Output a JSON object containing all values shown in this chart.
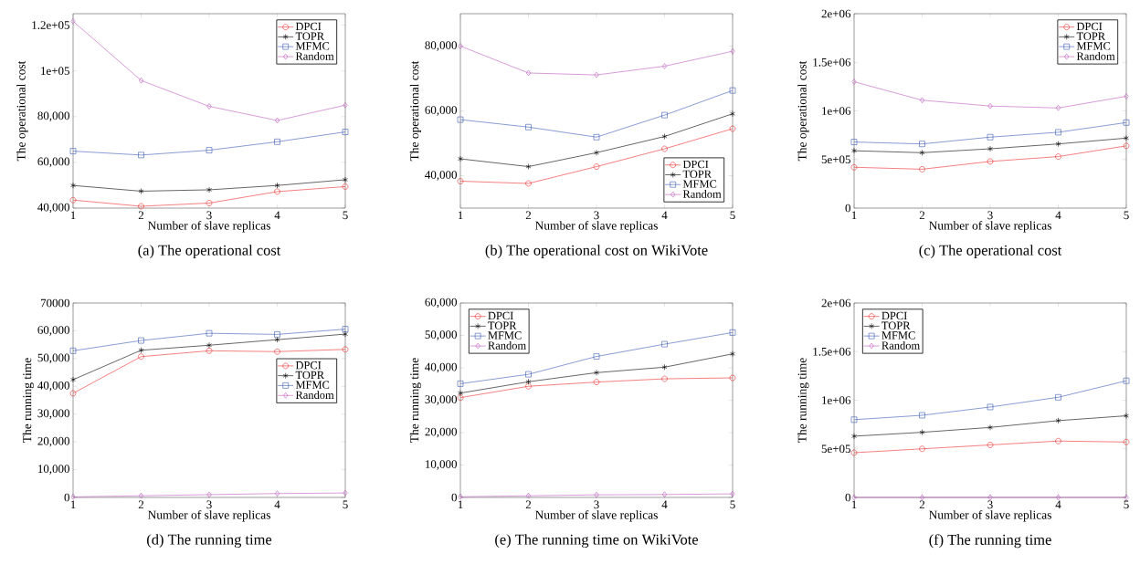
{
  "chart_data": [
    {
      "type": "line",
      "title": "(a) The operational cost",
      "xlabel": "Number of slave replicas",
      "ylabel": "The operational cost",
      "x": [
        1,
        2,
        3,
        4,
        5
      ],
      "xlim": [
        1,
        5
      ],
      "xticks": [
        1,
        2,
        3,
        4,
        5
      ],
      "ylim": [
        40000,
        125000
      ],
      "yticks": [
        {
          "value": 40000,
          "label": "40,000"
        },
        {
          "value": 60000,
          "label": "60,000"
        },
        {
          "value": 80000,
          "label": "80,000"
        },
        {
          "value": 100000,
          "label": "1e+05"
        },
        {
          "value": 120000,
          "label": "1.2e+05"
        }
      ],
      "legend": "top right",
      "grid": false,
      "series": [
        {
          "name": "DPCI",
          "color": "#ee2c2c",
          "marker": "circle",
          "values": [
            43500,
            40800,
            42200,
            47200,
            49400
          ]
        },
        {
          "name": "TOPR",
          "color": "#000000",
          "marker": "cross",
          "values": [
            49900,
            47400,
            48000,
            49900,
            52400
          ]
        },
        {
          "name": "MFMC",
          "color": "#3b5bb5",
          "marker": "square",
          "values": [
            64900,
            63200,
            65300,
            69000,
            73300
          ]
        },
        {
          "name": "Random",
          "color": "#c05ac0",
          "marker": "diamond",
          "values": [
            121700,
            95800,
            84500,
            78300,
            85000
          ]
        }
      ]
    },
    {
      "type": "line",
      "title": "(b) The operational cost on WikiVote",
      "xlabel": "Number of slave replicas",
      "ylabel": "The operational cost",
      "x": [
        1,
        2,
        3,
        4,
        5
      ],
      "xlim": [
        1,
        5
      ],
      "xticks": [
        1,
        2,
        3,
        4,
        5
      ],
      "ylim": [
        30000,
        90000
      ],
      "yticks": [
        {
          "value": 40000,
          "label": "40,000"
        },
        {
          "value": 60000,
          "label": "60,000"
        },
        {
          "value": 80000,
          "label": "80,000"
        }
      ],
      "legend": "bottom right",
      "grid": false,
      "series": [
        {
          "name": "DPCI",
          "color": "#ee2c2c",
          "marker": "circle",
          "values": [
            38300,
            37600,
            42800,
            48300,
            54500
          ]
        },
        {
          "name": "TOPR",
          "color": "#000000",
          "marker": "cross",
          "values": [
            45200,
            42800,
            47100,
            52100,
            59100
          ]
        },
        {
          "name": "MFMC",
          "color": "#3b5bb5",
          "marker": "square",
          "values": [
            57300,
            55000,
            51900,
            58700,
            66300
          ]
        },
        {
          "name": "Random",
          "color": "#c05ac0",
          "marker": "diamond",
          "values": [
            80000,
            71700,
            71100,
            73800,
            78400
          ]
        }
      ]
    },
    {
      "type": "line",
      "title": "(c) The operational cost",
      "xlabel": "Number of slave replicas",
      "ylabel": "The operational cost",
      "x": [
        1,
        2,
        3,
        4,
        5
      ],
      "xlim": [
        1,
        5
      ],
      "xticks": [
        1,
        2,
        3,
        4,
        5
      ],
      "ylim": [
        0,
        2000000
      ],
      "yticks": [
        0,
        {
          "value": 500000,
          "label": "5e+05"
        },
        {
          "value": 1000000,
          "label": "1e+06"
        },
        {
          "value": 1500000,
          "label": "1.5e+06"
        },
        {
          "value": 2000000,
          "label": "2e+06"
        }
      ],
      "legend": "top right",
      "grid": false,
      "series": [
        {
          "name": "DPCI",
          "color": "#ee2c2c",
          "marker": "circle",
          "values": [
            420000,
            400000,
            480000,
            530000,
            640000
          ]
        },
        {
          "name": "TOPR",
          "color": "#000000",
          "marker": "cross",
          "values": [
            590000,
            570000,
            610000,
            660000,
            720000
          ]
        },
        {
          "name": "MFMC",
          "color": "#3b5bb5",
          "marker": "square",
          "values": [
            680000,
            660000,
            730000,
            780000,
            880000
          ]
        },
        {
          "name": "Random",
          "color": "#c05ac0",
          "marker": "diamond",
          "values": [
            1300000,
            1110000,
            1050000,
            1030000,
            1150000
          ]
        }
      ]
    },
    {
      "type": "line",
      "title": "(d) The running time",
      "xlabel": "Number of slave replicas",
      "ylabel": "The running time",
      "x": [
        1,
        2,
        3,
        4,
        5
      ],
      "xlim": [
        1,
        5
      ],
      "xticks": [
        1,
        2,
        3,
        4,
        5
      ],
      "ylim": [
        0,
        70000
      ],
      "yticks": [
        0,
        {
          "value": 10000,
          "label": "10,000"
        },
        {
          "value": 20000,
          "label": "20,000"
        },
        {
          "value": 30000,
          "label": "30,000"
        },
        {
          "value": 40000,
          "label": "40,000"
        },
        {
          "value": 50000,
          "label": "50,000"
        },
        {
          "value": 60000,
          "label": "60,000"
        },
        70000
      ],
      "legend": "right",
      "grid": false,
      "series": [
        {
          "name": "DPCI",
          "color": "#ee2c2c",
          "marker": "circle",
          "values": [
            37500,
            50700,
            52800,
            52500,
            53300
          ]
        },
        {
          "name": "TOPR",
          "color": "#000000",
          "marker": "cross",
          "values": [
            42400,
            53000,
            54800,
            56800,
            58800
          ]
        },
        {
          "name": "MFMC",
          "color": "#3b5bb5",
          "marker": "square",
          "values": [
            52800,
            56500,
            59100,
            58700,
            60600
          ]
        },
        {
          "name": "Random",
          "color": "#c05ac0",
          "marker": "diamond",
          "values": [
            200,
            600,
            1000,
            1400,
            1600
          ]
        }
      ]
    },
    {
      "type": "line",
      "title": "(e) The running time on WikiVote",
      "xlabel": "Number of slave replicas",
      "ylabel": "The running time",
      "x": [
        1,
        2,
        3,
        4,
        5
      ],
      "xlim": [
        1,
        5
      ],
      "xticks": [
        1,
        2,
        3,
        4,
        5
      ],
      "ylim": [
        0,
        60000
      ],
      "yticks": [
        0,
        {
          "value": 10000,
          "label": "10,000"
        },
        {
          "value": 20000,
          "label": "20,000"
        },
        {
          "value": 30000,
          "label": "30,000"
        },
        {
          "value": 40000,
          "label": "40,000"
        },
        {
          "value": 50000,
          "label": "50,000"
        },
        {
          "value": 60000,
          "label": "60,000"
        }
      ],
      "legend": "top left",
      "grid": false,
      "series": [
        {
          "name": "DPCI",
          "color": "#ee2c2c",
          "marker": "circle",
          "values": [
            30800,
            34300,
            35600,
            36600,
            36900
          ]
        },
        {
          "name": "TOPR",
          "color": "#000000",
          "marker": "cross",
          "values": [
            32200,
            35700,
            38500,
            40200,
            44300
          ]
        },
        {
          "name": "MFMC",
          "color": "#3b5bb5",
          "marker": "square",
          "values": [
            35100,
            38000,
            43500,
            47300,
            50900
          ]
        },
        {
          "name": "Random",
          "color": "#c05ac0",
          "marker": "diamond",
          "values": [
            200,
            500,
            800,
            900,
            1100
          ]
        }
      ]
    },
    {
      "type": "line",
      "title": "(f) The running time",
      "xlabel": "Number of slave replicas",
      "ylabel": "The running time",
      "x": [
        1,
        2,
        3,
        4,
        5
      ],
      "xlim": [
        1,
        5
      ],
      "xticks": [
        1,
        2,
        3,
        4,
        5
      ],
      "ylim": [
        0,
        2000000
      ],
      "yticks": [
        0,
        {
          "value": 500000,
          "label": "5e+05"
        },
        {
          "value": 1000000,
          "label": "1e+06"
        },
        {
          "value": 1500000,
          "label": "1.5e+06"
        },
        {
          "value": 2000000,
          "label": "2e+06"
        }
      ],
      "legend": "top left",
      "grid": false,
      "series": [
        {
          "name": "DPCI",
          "color": "#ee2c2c",
          "marker": "circle",
          "values": [
            460000,
            500000,
            540000,
            580000,
            570000
          ]
        },
        {
          "name": "TOPR",
          "color": "#000000",
          "marker": "cross",
          "values": [
            630000,
            670000,
            720000,
            790000,
            840000
          ]
        },
        {
          "name": "MFMC",
          "color": "#3b5bb5",
          "marker": "square",
          "values": [
            800000,
            845000,
            930000,
            1030000,
            1200000
          ]
        },
        {
          "name": "Random",
          "color": "#c05ac0",
          "marker": "diamond",
          "values": [
            0,
            0,
            0,
            0,
            0
          ]
        }
      ]
    }
  ]
}
